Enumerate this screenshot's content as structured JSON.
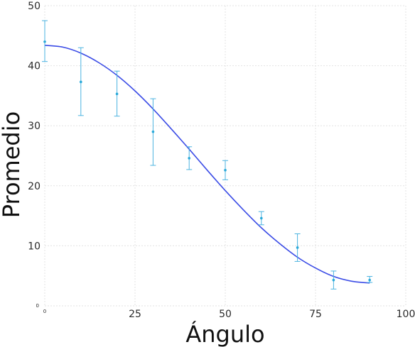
{
  "chart_data": {
    "type": "scatter",
    "xlabel": "Ángulo",
    "ylabel": "Promedio",
    "xlim": [
      0,
      100
    ],
    "ylim": [
      0,
      50
    ],
    "x_ticks": [
      0,
      25,
      50,
      75,
      100
    ],
    "y_ticks": [
      0,
      10,
      20,
      30,
      40,
      50
    ],
    "x_tick_labels": [
      "0",
      "25",
      "50",
      "75",
      "100"
    ],
    "y_tick_labels": [
      "0",
      "10",
      "20",
      "30",
      "40",
      "50"
    ],
    "grid": true,
    "legend": "none",
    "colors": {
      "points": "#29a9d9",
      "errorbars": "#4bb3e0",
      "fit": "#3b4ce6"
    },
    "series": [
      {
        "kind": "points-with-errorbars",
        "x": [
          0,
          10,
          20,
          30,
          40,
          50,
          60,
          70,
          80,
          90
        ],
        "y": [
          44.0,
          37.3,
          35.3,
          29.0,
          24.6,
          22.6,
          14.6,
          9.7,
          4.3,
          4.3
        ],
        "yerr_low": [
          3.3,
          5.6,
          3.7,
          5.6,
          1.9,
          1.6,
          1.1,
          2.3,
          1.5,
          0.4
        ],
        "yerr_high": [
          3.5,
          5.7,
          3.8,
          5.5,
          1.9,
          1.6,
          1.1,
          2.3,
          1.5,
          0.6
        ]
      },
      {
        "kind": "fit-curve",
        "x": [
          0,
          5,
          10,
          15,
          20,
          25,
          30,
          35,
          40,
          45,
          50,
          55,
          60,
          65,
          70,
          75,
          80,
          85,
          90
        ],
        "y": [
          43.4,
          43.1,
          42.1,
          40.5,
          38.4,
          35.8,
          32.8,
          29.5,
          26.1,
          22.6,
          19.2,
          16.0,
          13.0,
          10.4,
          8.1,
          6.3,
          4.9,
          4.1,
          3.8
        ]
      }
    ]
  }
}
